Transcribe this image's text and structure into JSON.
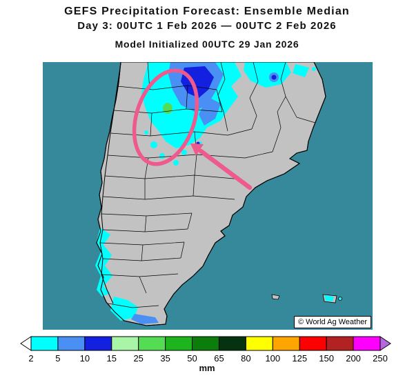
{
  "header": {
    "title": "GEFS Precipitation Forecast: Ensemble Median",
    "subtitle": "Day 3: 00UTC 1 Feb 2026 — 00UTC 2 Feb 2026",
    "init_line": "Model Initialized 00UTC 29 Jan 2026"
  },
  "map": {
    "copyright": "© World Ag Weather",
    "ocean_color": "#35899B",
    "land_color": "#C2C2C2",
    "border_color": "#000000",
    "annotation_color": "#EE5A8E"
  },
  "legend": {
    "unit": "mm",
    "labels": [
      "2",
      "5",
      "10",
      "15",
      "25",
      "35",
      "50",
      "65",
      "80",
      "100",
      "125",
      "150",
      "200",
      "250"
    ],
    "segment_colors": [
      "#00FFFF",
      "#4A90F4",
      "#1420E0",
      "#A8F5A8",
      "#55DC55",
      "#1EB41E",
      "#0A7D0A",
      "#06330F",
      "#FFFF00",
      "#FFA500",
      "#FF0000",
      "#B22222",
      "#FF00FF"
    ],
    "left_cap_color": "#FFFFFF",
    "right_cap_color": "#B469DC"
  }
}
